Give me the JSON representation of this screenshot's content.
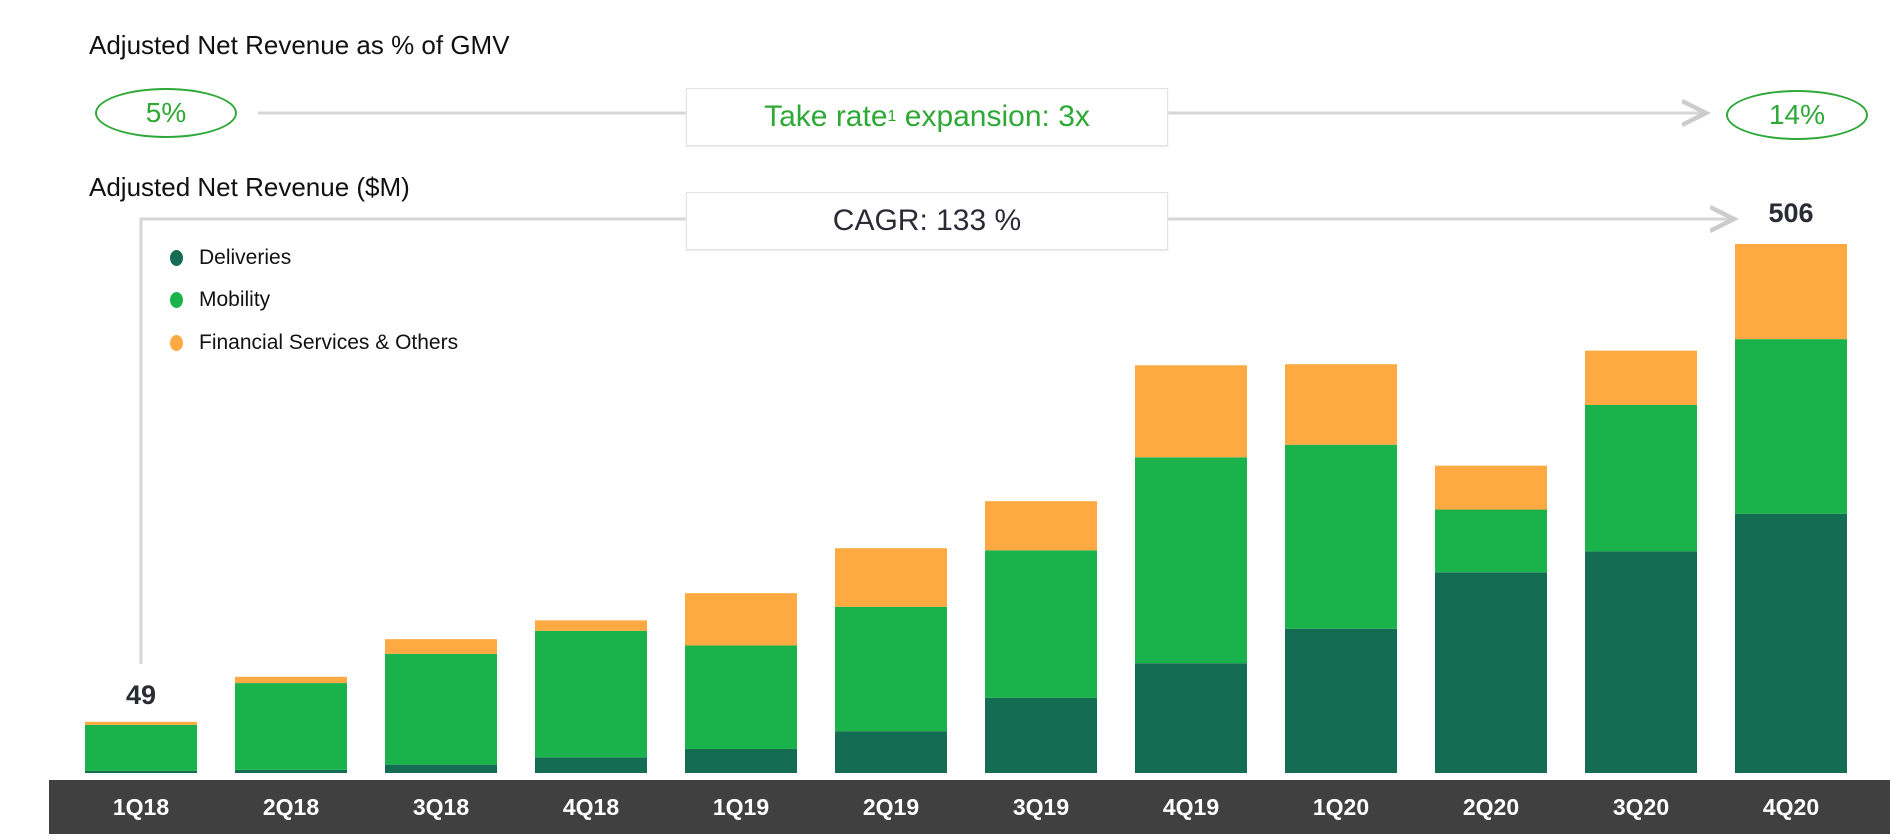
{
  "header": {
    "take_rate_title": "Adjusted Net Revenue as % of GMV",
    "start_rate": "5%",
    "end_rate": "14%",
    "take_rate_label": "Take rate",
    "take_rate_sup": "1",
    "take_rate_suffix": " expansion: 3x",
    "cagr_label": "CAGR: 133 %"
  },
  "colors": {
    "deliveries": "#146c52",
    "mobility": "#1ab34b",
    "financial": "#fea941",
    "accent_text": "#2ea836",
    "axis_band": "#404040"
  },
  "chart_data": {
    "type": "bar",
    "stacked": true,
    "title": "Adjusted Net Revenue ($M)",
    "categories": [
      "1Q18",
      "2Q18",
      "3Q18",
      "4Q18",
      "1Q19",
      "2Q19",
      "3Q19",
      "4Q19",
      "1Q20",
      "2Q20",
      "3Q20",
      "4Q20"
    ],
    "series": [
      {
        "name": "Deliveries",
        "values": [
          2,
          3,
          8,
          15,
          23,
          40,
          72,
          105,
          138,
          192,
          212,
          248
        ]
      },
      {
        "name": "Mobility",
        "values": [
          44,
          83,
          106,
          121,
          99,
          119,
          141,
          197,
          176,
          60,
          140,
          167
        ]
      },
      {
        "name": "Financial Services & Others",
        "values": [
          3,
          6,
          14,
          10,
          50,
          56,
          47,
          88,
          77,
          42,
          52,
          91
        ]
      }
    ],
    "data_labels": {
      "first": "49",
      "last": "506"
    },
    "legend_placement": "top-left",
    "grid": false,
    "ylim": [
      0,
      506
    ]
  }
}
